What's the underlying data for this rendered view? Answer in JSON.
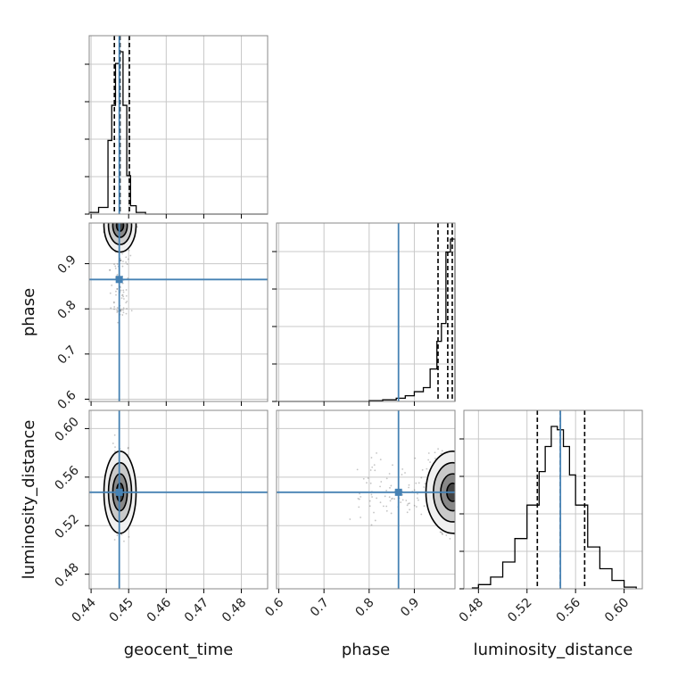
{
  "chart_data": {
    "type": "corner",
    "parameters": [
      "geocent_time",
      "phase",
      "luminosity_distance"
    ],
    "axis_labels": {
      "geocent_time": "geocent_time",
      "phase": "phase",
      "luminosity_distance": "luminosity_distance"
    },
    "ranges": {
      "geocent_time": [
        0.4395,
        0.487
      ],
      "phase": [
        0.595,
        0.99
      ],
      "luminosity_distance": [
        0.468,
        0.615
      ]
    },
    "ticks": {
      "geocent_time": [
        "0.44",
        "0.45",
        "0.46",
        "0.47",
        "0.48"
      ],
      "phase": [
        "0.6",
        "0.7",
        "0.8",
        "0.9"
      ],
      "luminosity_distance": [
        "0.48",
        "0.52",
        "0.56",
        "0.60"
      ]
    },
    "truth": {
      "geocent_time": 0.4475,
      "phase": 0.865,
      "luminosity_distance": 0.5475
    },
    "truth_color": "#4682b4",
    "quantiles": {
      "geocent_time": [
        0.4462,
        0.4477,
        0.4502
      ],
      "phase": [
        0.9525,
        0.974,
        0.984
      ],
      "luminosity_distance": [
        0.5285,
        0.5475,
        0.5675
      ]
    },
    "histograms": {
      "geocent_time": {
        "edges": [
          0.4395,
          0.442,
          0.4445,
          0.4455,
          0.4465,
          0.4475,
          0.4485,
          0.4495,
          0.4505,
          0.452,
          0.4545,
          0.487
        ],
        "counts": [
          0.01,
          0.04,
          0.44,
          0.65,
          0.9,
          0.97,
          0.65,
          0.23,
          0.05,
          0.01,
          0.0
        ]
      },
      "phase": {
        "edges": [
          0.595,
          0.8,
          0.83,
          0.86,
          0.88,
          0.9,
          0.92,
          0.935,
          0.95,
          0.96,
          0.97,
          0.98,
          0.99
        ],
        "counts": [
          0.0,
          0.005,
          0.01,
          0.02,
          0.035,
          0.06,
          0.085,
          0.2,
          0.37,
          0.48,
          0.92,
          1.0
        ]
      },
      "luminosity_distance": {
        "edges": [
          0.475,
          0.48,
          0.49,
          0.5,
          0.51,
          0.52,
          0.53,
          0.535,
          0.54,
          0.545,
          0.55,
          0.555,
          0.56,
          0.57,
          0.58,
          0.59,
          0.6,
          0.61
        ],
        "counts": [
          0.005,
          0.025,
          0.07,
          0.16,
          0.3,
          0.5,
          0.7,
          0.85,
          0.97,
          0.95,
          0.85,
          0.68,
          0.5,
          0.25,
          0.12,
          0.05,
          0.01
        ]
      }
    },
    "grid": true
  }
}
